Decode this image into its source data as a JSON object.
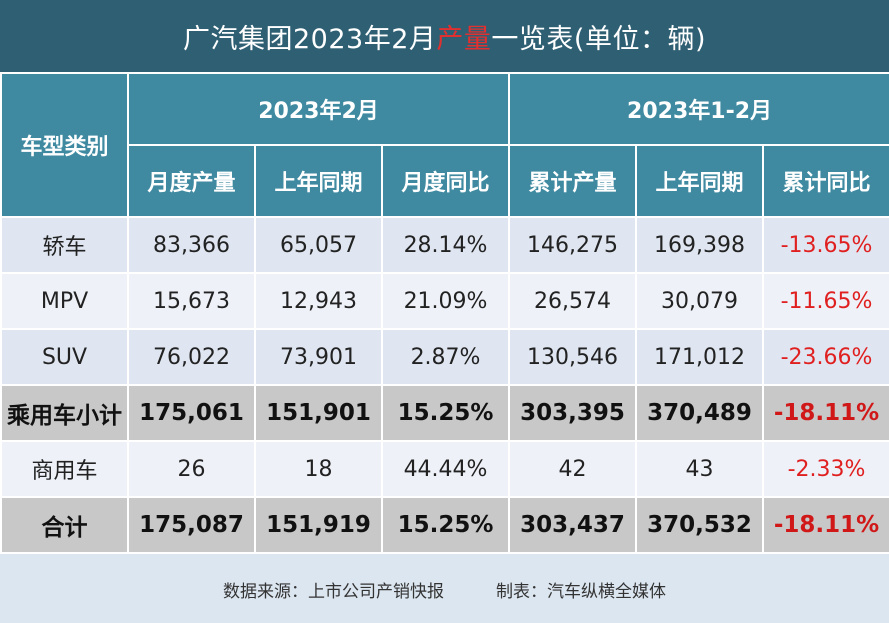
{
  "title": {
    "before": "广汽集团2023年2月",
    "highlight": "产量",
    "after": "一览表(单位：辆)"
  },
  "header": {
    "category": "车型类别",
    "period_month": "2023年2月",
    "period_ytd": "2023年1-2月",
    "columns": [
      "月度产量",
      "上年同期",
      "月度同比",
      "累计产量",
      "上年同期",
      "累计同比"
    ]
  },
  "rows": [
    {
      "category": "轿车",
      "values": [
        "83,366",
        "65,057",
        "28.14%",
        "146,275",
        "169,398",
        "-13.65%"
      ]
    },
    {
      "category": "MPV",
      "values": [
        "15,673",
        "12,943",
        "21.09%",
        "26,574",
        "30,079",
        "-11.65%"
      ]
    },
    {
      "category": "SUV",
      "values": [
        "76,022",
        "73,901",
        "2.87%",
        "130,546",
        "171,012",
        "-23.66%"
      ]
    },
    {
      "category": "乘用车小计",
      "values": [
        "175,061",
        "151,901",
        "15.25%",
        "303,395",
        "370,489",
        "-18.11%"
      ]
    },
    {
      "category": "商用车",
      "values": [
        "26",
        "18",
        "44.44%",
        "42",
        "43",
        "-2.33%"
      ]
    },
    {
      "category": "合计",
      "values": [
        "175,087",
        "151,919",
        "15.25%",
        "303,437",
        "370,532",
        "-18.11%"
      ]
    }
  ],
  "footer": {
    "source": "数据来源：上市公司产销快报",
    "maker": "制表：汽车纵横全媒体"
  },
  "colors": {
    "title_bg": "#2f5f73",
    "header_bg": "#3f8aa1",
    "negative": "#e02020",
    "highlight": "#e03030"
  }
}
